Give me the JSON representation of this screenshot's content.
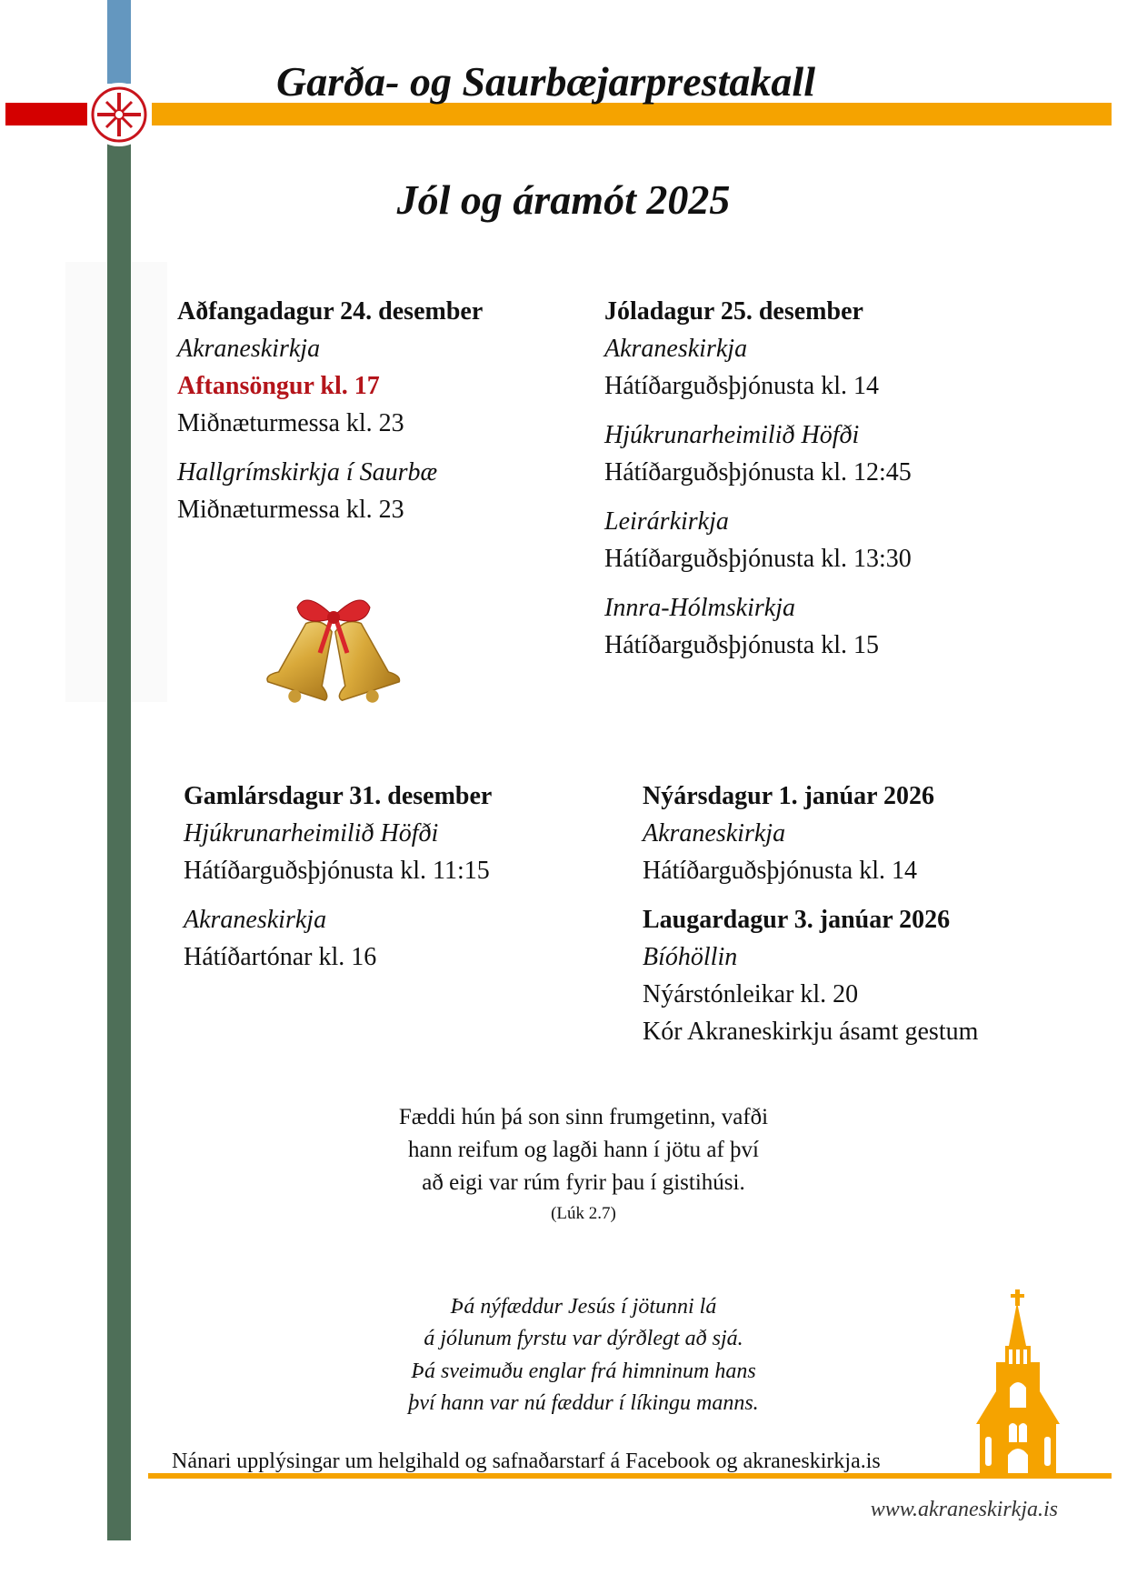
{
  "header": {
    "title": "Garða- og Saurbæjarprestakall",
    "subtitle": "Jól og áramót 2025",
    "logo_icon": "church-cross-emblem-icon"
  },
  "colors": {
    "blue_bar": "#6497bf",
    "green_bar": "#4e6f58",
    "red_bar": "#d40000",
    "orange_bar": "#f5a300",
    "highlight_text": "#b4141a"
  },
  "days": [
    {
      "heading": "Aðfangadagur 24. desember",
      "groups": [
        {
          "place": "Akraneskirkja",
          "events": [
            {
              "text": "Aftansöngur kl. 17",
              "highlight": true
            },
            {
              "text": "Miðnæturmessa kl. 23"
            }
          ]
        },
        {
          "place": "Hallgrímskirkja í Saurbæ",
          "events": [
            {
              "text": "Miðnæturmessa kl. 23"
            }
          ]
        }
      ]
    },
    {
      "heading": "Jóladagur 25. desember",
      "groups": [
        {
          "place": "Akraneskirkja",
          "events": [
            {
              "text": "Hátíðarguðsþjónusta kl. 14"
            }
          ]
        },
        {
          "place": "Hjúkrunarheimilið Höfði",
          "events": [
            {
              "text": "Hátíðarguðsþjónusta kl. 12:45"
            }
          ]
        },
        {
          "place": "Leirárkirkja",
          "events": [
            {
              "text": "Hátíðarguðsþjónusta kl. 13:30"
            }
          ]
        },
        {
          "place": "Innra-Hólmskirkja",
          "events": [
            {
              "text": "Hátíðarguðsþjónusta kl. 15"
            }
          ]
        }
      ]
    },
    {
      "heading": "Gamlársdagur 31. desember",
      "groups": [
        {
          "place": "Hjúkrunarheimilið Höfði",
          "events": [
            {
              "text": "Hátíðarguðsþjónusta kl. 11:15"
            }
          ]
        },
        {
          "place": "Akraneskirkja",
          "events": [
            {
              "text": "Hátíðartónar kl. 16"
            }
          ]
        }
      ]
    },
    {
      "heading": "Nýársdagur 1. janúar 2026",
      "groups": [
        {
          "place": "Akraneskirkja",
          "events": [
            {
              "text": "Hátíðarguðsþjónusta kl. 14"
            }
          ]
        }
      ]
    },
    {
      "heading": "Laugardagur 3. janúar 2026",
      "groups": [
        {
          "place": "Bíóhöllin",
          "events": [
            {
              "text": "Nýárstónleikar kl. 20"
            },
            {
              "text": "Kór Akraneskirkju ásamt gestum"
            }
          ]
        }
      ]
    }
  ],
  "decor": {
    "bells_icon": "christmas-bells-icon",
    "church_icon": "church-silhouette-icon"
  },
  "scripture": {
    "lines": [
      "Fæddi hún þá son sinn frumgetinn, vafði",
      "hann reifum og lagði hann í jötu af því",
      "að eigi var rúm fyrir þau í gistihúsi."
    ],
    "reference": "(Lúk 2.7)"
  },
  "poem": {
    "lines": [
      "Þá nýfæddur Jesús í jötunni lá",
      "á jólunum fyrstu var dýrðlegt að sjá.",
      "Þá sveimuðu englar frá himninum hans",
      "því hann var nú fæddur í líkingu manns."
    ]
  },
  "footer": {
    "info": "Nánari upplýsingar um helgihald og safnaðarstarf á Facebook og akraneskirkja.is",
    "website": "www.akraneskirkja.is"
  }
}
